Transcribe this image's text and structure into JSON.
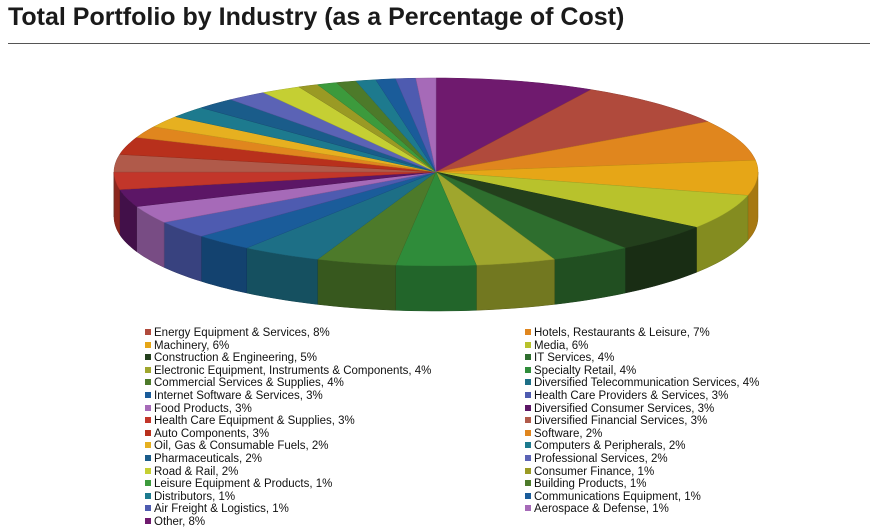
{
  "chart_data": {
    "type": "pie",
    "title": "Total Portfolio by Industry (as a Percentage of Cost)",
    "slices": [
      {
        "label": "Other",
        "value": 8,
        "color": "#6f1a6e"
      },
      {
        "label": "Energy Equipment & Services",
        "value": 8,
        "color": "#b04a3c"
      },
      {
        "label": "Hotels, Restaurants & Leisure",
        "value": 7,
        "color": "#e0861e"
      },
      {
        "label": "Machinery",
        "value": 6,
        "color": "#e6a617"
      },
      {
        "label": "Media",
        "value": 6,
        "color": "#b8c22c"
      },
      {
        "label": "Construction & Engineering",
        "value": 5,
        "color": "#233f1c"
      },
      {
        "label": "IT Services",
        "value": 4,
        "color": "#2e6e2e"
      },
      {
        "label": "Electronic Equipment, Instruments & Components",
        "value": 4,
        "color": "#9fa62d"
      },
      {
        "label": "Specialty Retail",
        "value": 4,
        "color": "#2f8c3a"
      },
      {
        "label": "Commercial Services & Supplies",
        "value": 4,
        "color": "#4d7a2a"
      },
      {
        "label": "Diversified Telecommunication Services",
        "value": 4,
        "color": "#1d6f86"
      },
      {
        "label": "Internet Software & Services",
        "value": 3,
        "color": "#1a5c9a"
      },
      {
        "label": "Health Care Providers & Services",
        "value": 3,
        "color": "#4e5bb0"
      },
      {
        "label": "Food Products",
        "value": 3,
        "color": "#a66ab8"
      },
      {
        "label": "Diversified Consumer Services",
        "value": 3,
        "color": "#5c1666"
      },
      {
        "label": "Health Care Equipment & Supplies",
        "value": 3,
        "color": "#c2362a"
      },
      {
        "label": "Diversified Financial Services",
        "value": 3,
        "color": "#b05a4a"
      },
      {
        "label": "Auto Components",
        "value": 3,
        "color": "#b8301c"
      },
      {
        "label": "Software",
        "value": 2,
        "color": "#e0861e"
      },
      {
        "label": "Oil, Gas & Consumable Fuels",
        "value": 2,
        "color": "#e6b020"
      },
      {
        "label": "Computers & Peripherals",
        "value": 2,
        "color": "#1d7a8e"
      },
      {
        "label": "Pharmaceuticals",
        "value": 2,
        "color": "#1a5c8a"
      },
      {
        "label": "Professional Services",
        "value": 2,
        "color": "#5b63b5"
      },
      {
        "label": "Road & Rail",
        "value": 2,
        "color": "#c5cf33"
      },
      {
        "label": "Consumer Finance",
        "value": 1,
        "color": "#9a9a24"
      },
      {
        "label": "Leisure Equipment & Products",
        "value": 1,
        "color": "#3c9a3c"
      },
      {
        "label": "Building Products",
        "value": 1,
        "color": "#4d7a2a"
      },
      {
        "label": "Distributors",
        "value": 1,
        "color": "#1d7a8e"
      },
      {
        "label": "Communications Equipment",
        "value": 1,
        "color": "#1a5c9a"
      },
      {
        "label": "Air Freight & Logistics",
        "value": 1,
        "color": "#4e5bb0"
      },
      {
        "label": "Aerospace & Defense",
        "value": 1,
        "color": "#a66ab8"
      }
    ],
    "legend": {
      "placement": "bottom",
      "left_column": [
        {
          "text": "Energy Equipment & Services, 8%",
          "color": "#b04a3c"
        },
        {
          "text": "Machinery, 6%",
          "color": "#e6a617"
        },
        {
          "text": "Construction & Engineering, 5%",
          "color": "#233f1c"
        },
        {
          "text": "Electronic Equipment, Instruments & Components, 4%",
          "color": "#9fa62d"
        },
        {
          "text": "Commercial Services & Supplies, 4%",
          "color": "#4d7a2a"
        },
        {
          "text": "Internet Software & Services, 3%",
          "color": "#1a5c9a"
        },
        {
          "text": "Food Products, 3%",
          "color": "#a66ab8"
        },
        {
          "text": "Health Care Equipment & Supplies, 3%",
          "color": "#c2362a"
        },
        {
          "text": "Auto Components, 3%",
          "color": "#b8301c"
        },
        {
          "text": "Oil, Gas & Consumable Fuels, 2%",
          "color": "#e6b020"
        },
        {
          "text": "Pharmaceuticals, 2%",
          "color": "#1a5c8a"
        },
        {
          "text": "Road & Rail, 2%",
          "color": "#c5cf33"
        },
        {
          "text": "Leisure Equipment & Products, 1%",
          "color": "#3c9a3c"
        },
        {
          "text": "Distributors, 1%",
          "color": "#1d7a8e"
        },
        {
          "text": "Air Freight & Logistics, 1%",
          "color": "#4e5bb0"
        },
        {
          "text": "Other, 8%",
          "color": "#6f1a6e"
        }
      ],
      "right_column": [
        {
          "text": "Hotels, Restaurants & Leisure, 7%",
          "color": "#e0861e"
        },
        {
          "text": "Media, 6%",
          "color": "#b8c22c"
        },
        {
          "text": "IT Services, 4%",
          "color": "#2e6e2e"
        },
        {
          "text": "Specialty Retail, 4%",
          "color": "#2f8c3a"
        },
        {
          "text": "Diversified Telecommunication Services, 4%",
          "color": "#1d6f86"
        },
        {
          "text": "Health Care Providers & Services, 3%",
          "color": "#4e5bb0"
        },
        {
          "text": "Diversified Consumer Services, 3%",
          "color": "#5c1666"
        },
        {
          "text": "Diversified Financial Services, 3%",
          "color": "#b05a4a"
        },
        {
          "text": "Software, 2%",
          "color": "#e0861e"
        },
        {
          "text": "Computers & Peripherals, 2%",
          "color": "#1d7a8e"
        },
        {
          "text": "Professional Services, 2%",
          "color": "#5b63b5"
        },
        {
          "text": "Consumer Finance, 1%",
          "color": "#9a9a24"
        },
        {
          "text": "Building Products, 1%",
          "color": "#4d7a2a"
        },
        {
          "text": "Communications Equipment, 1%",
          "color": "#1a5c9a"
        },
        {
          "text": "Aerospace & Defense, 1%",
          "color": "#a66ab8"
        }
      ]
    }
  }
}
